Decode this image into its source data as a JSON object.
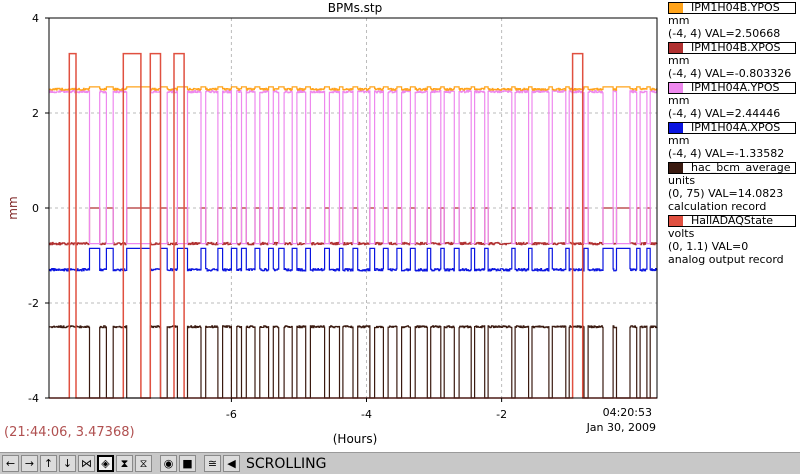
{
  "chart_data": {
    "type": "line",
    "title": "BPMs.stp",
    "ylabel": "mm",
    "xlabel": "(Hours)",
    "xlim": [
      -8.7,
      0.3
    ],
    "ylim": [
      -4,
      4
    ],
    "x_ticks": [
      -6,
      -4,
      -2
    ],
    "x_tick_labels": [
      "-6",
      "-4",
      "-2"
    ],
    "y_ticks": [
      4,
      2,
      0,
      -2,
      -4
    ],
    "y_tick_labels": [
      "4",
      "2",
      "0",
      "-2",
      "-4"
    ],
    "end_time": "04:20:53",
    "end_date": "Jan 30, 2009",
    "grid": true,
    "series": [
      {
        "name": "IPM1H04B.YPOS",
        "color": "#ffa31a",
        "baseline": 2.5,
        "x": [
          -8.55,
          -7.6,
          -7.35,
          -7.0,
          -6.7,
          -2.45,
          -1.6,
          -1.05,
          -0.55,
          0.3
        ],
        "values": [
          2.5,
          2.5,
          2.6,
          2.5,
          2.5,
          2.7,
          2.5,
          2.5,
          2.6,
          2.5
        ]
      },
      {
        "name": "IPM1H04B.XPOS",
        "color": "#b03030",
        "baseline": -0.75,
        "alt": 0
      },
      {
        "name": "IPM1H04A.YPOS",
        "color": "#ee88ee",
        "baseline": 2.45,
        "alt": -0.75
      },
      {
        "name": "IPM1H04A.XPOS",
        "color": "#0a14e0",
        "baseline": -1.3,
        "alt": -0.85
      },
      {
        "name": "hac_bcm_average",
        "color": "#3a1a10",
        "baseline": -2.5,
        "alt": -4
      },
      {
        "name": "HallADAQState",
        "color": "#e05040",
        "baseline": -4,
        "alt": 3.25
      }
    ],
    "dropout_windows": [
      [
        -8.1,
        -7.95
      ],
      [
        -7.85,
        -7.75
      ],
      [
        -7.55,
        -7.2
      ],
      [
        -7.05,
        -6.95
      ],
      [
        -6.8,
        -6.65
      ],
      [
        -6.45,
        -6.38
      ],
      [
        -6.2,
        -6.13
      ],
      [
        -6.0,
        -5.92
      ],
      [
        -5.85,
        -5.78
      ],
      [
        -5.65,
        -5.58
      ],
      [
        -5.45,
        -5.38
      ],
      [
        -5.3,
        -5.22
      ],
      [
        -5.1,
        -5.03
      ],
      [
        -4.9,
        -4.83
      ],
      [
        -4.62,
        -4.55
      ],
      [
        -4.4,
        -4.35
      ],
      [
        -4.2,
        -4.13
      ],
      [
        -3.95,
        -3.88
      ],
      [
        -3.75,
        -3.68
      ],
      [
        -3.55,
        -3.48
      ],
      [
        -3.35,
        -3.28
      ],
      [
        -3.1,
        -3.05
      ],
      [
        -2.9,
        -2.85
      ],
      [
        -2.7,
        -2.63
      ],
      [
        -2.45,
        -2.4
      ],
      [
        -2.25,
        -2.2
      ],
      [
        -1.85,
        -1.8
      ],
      [
        -1.6,
        -1.55
      ],
      [
        -1.3,
        -1.25
      ],
      [
        -1.05,
        -1.0
      ],
      [
        -0.78,
        -0.72
      ],
      [
        -0.5,
        -0.35
      ],
      [
        -0.3,
        -0.1
      ],
      [
        0.0,
        0.05
      ],
      [
        0.15,
        0.2
      ]
    ],
    "daq_pulses": [
      [
        -8.4,
        -8.3
      ],
      [
        -7.6,
        -7.35
      ],
      [
        -7.2,
        -7.05
      ],
      [
        -6.85,
        -6.7
      ],
      [
        -0.95,
        -0.8
      ]
    ]
  },
  "legend": [
    {
      "name": "IPM1H04B.YPOS",
      "color": "#ffa31a",
      "lines": [
        "mm",
        "(-4, 4) VAL=2.50668"
      ]
    },
    {
      "name": "IPM1H04B.XPOS",
      "color": "#b03030",
      "lines": [
        "mm",
        "(-4, 4) VAL=-0.803326"
      ]
    },
    {
      "name": "IPM1H04A.YPOS",
      "color": "#ee88ee",
      "lines": [
        "mm",
        "(-4, 4) VAL=2.44446"
      ]
    },
    {
      "name": "IPM1H04A.XPOS",
      "color": "#0a14e0",
      "lines": [
        "mm",
        "(-4, 4) VAL=-1.33582"
      ]
    },
    {
      "name": "hac_bcm_average",
      "color": "#3a1a10",
      "lines": [
        "units",
        "(0, 75) VAL=14.0823",
        "calculation record"
      ]
    },
    {
      "name": "HallADAQState",
      "color": "#e05040",
      "lines": [
        "volts",
        "(0, 1.1) VAL=0",
        "analog output record"
      ]
    }
  ],
  "cursor_readout": "(21:44:06, 3.47368)",
  "toolbar": {
    "buttons": [
      {
        "name": "scroll-left-button",
        "icon": "arrow-left-icon",
        "glyph": "←"
      },
      {
        "name": "scroll-right-button",
        "icon": "arrow-right-icon",
        "glyph": "→"
      },
      {
        "name": "scroll-up-button",
        "icon": "arrow-up-icon",
        "glyph": "↑"
      },
      {
        "name": "scroll-down-button",
        "icon": "arrow-down-icon",
        "glyph": "↓"
      },
      {
        "name": "zoom-in-x-button",
        "icon": "zoom-in-horizontal-icon",
        "glyph": "⋈"
      },
      {
        "name": "zoom-out-x-button",
        "icon": "zoom-out-horizontal-icon",
        "glyph": "◈",
        "active": true
      },
      {
        "name": "zoom-in-y-button",
        "icon": "zoom-in-vertical-icon",
        "glyph": "⧗"
      },
      {
        "name": "zoom-out-y-button",
        "icon": "zoom-out-vertical-icon",
        "glyph": "⧖"
      },
      {
        "name": "auto-scale-button",
        "icon": "auto-scale-icon",
        "glyph": "◉"
      },
      {
        "name": "stop-button",
        "icon": "stop-icon",
        "glyph": "■"
      },
      {
        "name": "fit-button",
        "icon": "fit-icon",
        "glyph": "≅"
      },
      {
        "name": "back-button",
        "icon": "back-icon",
        "glyph": "◀"
      }
    ],
    "mode": "SCROLLING"
  }
}
